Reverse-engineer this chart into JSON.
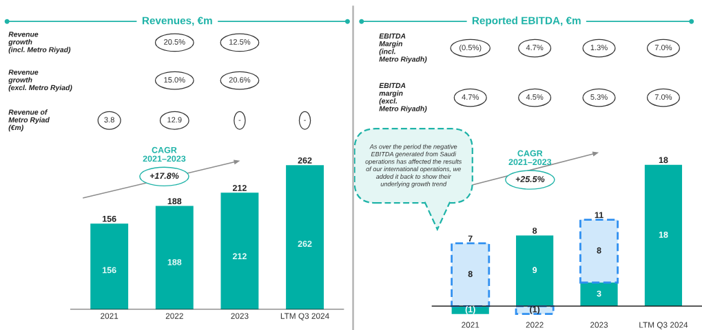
{
  "chart_data": [
    {
      "type": "bar",
      "title": "Revenues, €m",
      "categories": [
        "2021",
        "2022",
        "2023",
        "LTM Q3 2024"
      ],
      "values": [
        156,
        188,
        212,
        262
      ],
      "color": "#00b0a5",
      "stacked": true,
      "totals": [
        "156",
        "188",
        "212",
        "262"
      ],
      "tick_labels": "x",
      "value_labels": [
        "156",
        "188",
        "212",
        "262"
      ],
      "annotations": [
        "Revenue\ngrowth\n(incl. Metro Riyad)",
        "20.5%",
        "12.5%",
        "Revenue\ngrowth\n(excl. Metro Ryiad)",
        "15.0%",
        "20.6%",
        "Revenue of\nMetro Ryiad\n(€m)",
        "3.8",
        "12.9",
        "-",
        "-",
        "CAGR\n2021–2023",
        "+17.8%"
      ]
    },
    {
      "type": "bar",
      "title": "Reported EBITDA, €m",
      "categories": [
        "2021",
        "2022",
        "2023",
        "LTM Q3 2024"
      ],
      "stacked": true,
      "tick_labels": "x",
      "series": [
        {
          "color": "#00b0a5",
          "values": [
            -1,
            9,
            3,
            18
          ],
          "value_labels": [
            "(1)",
            "9",
            "3",
            "18"
          ]
        },
        {
          "color": "#d0e8fb",
          "values": [
            8,
            -1,
            8,
            null
          ],
          "value_labels": [
            "8",
            "(1)",
            "8",
            null
          ],
          "line_style": "dashed"
        }
      ],
      "totals": [
        "7",
        "8",
        "11",
        "18"
      ],
      "annotations": [
        "EBITDA\nMargin\n(incl.\nMetro Riyadh)",
        "(0.5%)",
        "4.7%",
        "1.3%",
        "7.0%",
        "EBITDA\nmargin\n(excl.\nMetro Riyadh)",
        "4.7%",
        "4.5%",
        "5.3%",
        "7.0%",
        "As over the period the negative\nEBITDA generated from Saudi\noperations has affected the results\nof our international operations, we\nadded it back to show their\nunderlying growth trend",
        "CAGR\n2021–2023",
        "+25.5%"
      ]
    }
  ]
}
